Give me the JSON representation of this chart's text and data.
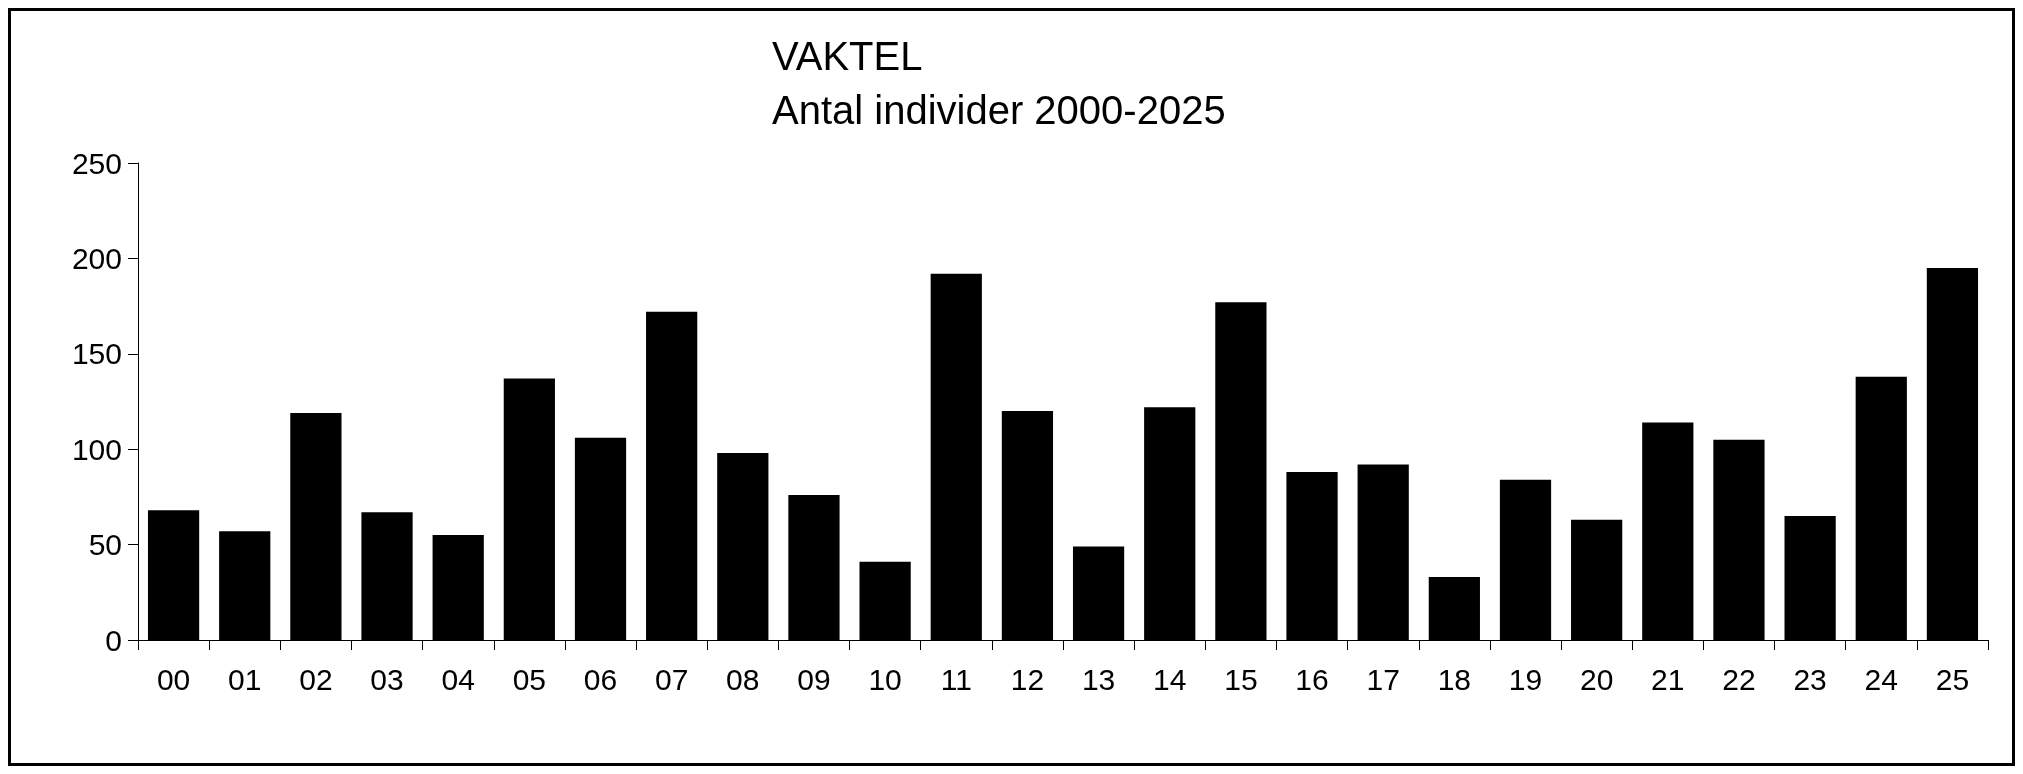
{
  "chart_data": {
    "type": "bar",
    "title": "VAKTEL",
    "subtitle": "Antal individer 2000-2025",
    "categories": [
      "00",
      "01",
      "02",
      "03",
      "04",
      "05",
      "06",
      "07",
      "08",
      "09",
      "10",
      "11",
      "12",
      "13",
      "14",
      "15",
      "16",
      "17",
      "18",
      "19",
      "20",
      "21",
      "22",
      "23",
      "24",
      "25"
    ],
    "values": [
      68,
      57,
      119,
      67,
      55,
      137,
      106,
      172,
      98,
      76,
      41,
      192,
      120,
      49,
      122,
      177,
      88,
      92,
      33,
      84,
      63,
      114,
      105,
      65,
      138,
      195
    ],
    "color": "#000000",
    "ylim": [
      0,
      250
    ],
    "yticks": [
      0,
      50,
      100,
      150,
      200,
      250
    ],
    "grid": false
  }
}
